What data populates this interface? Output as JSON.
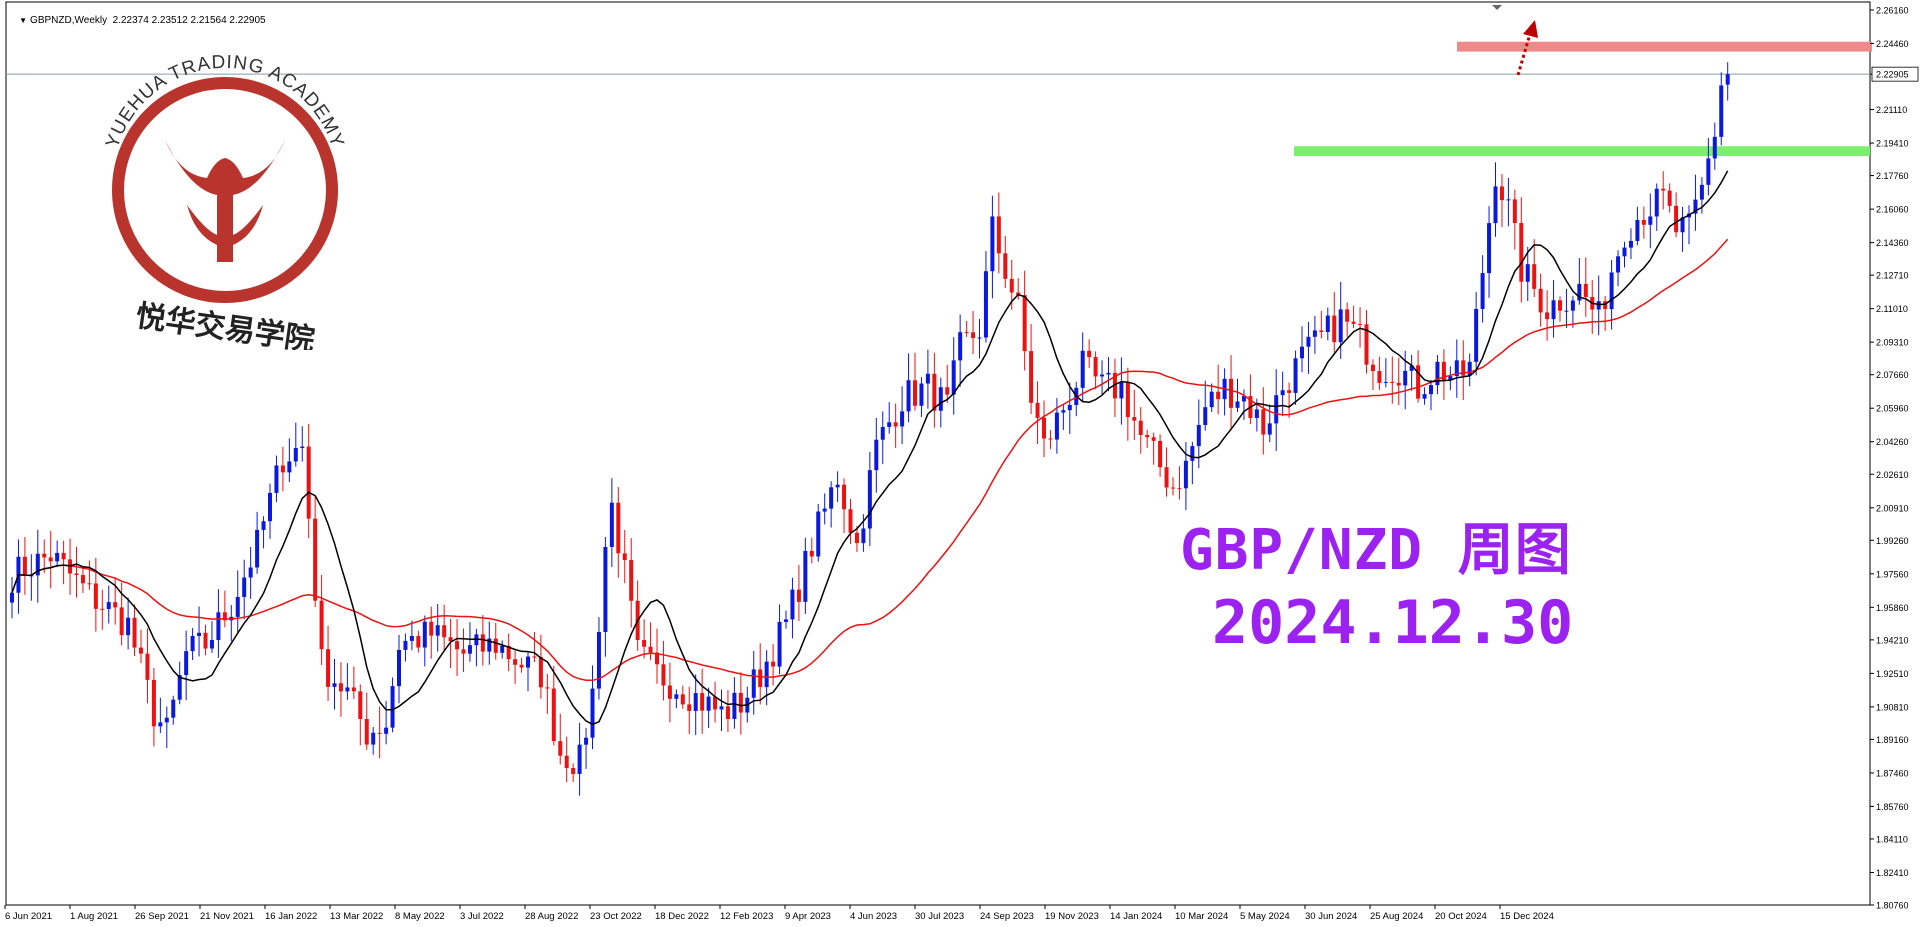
{
  "header": {
    "text": "GBPNZD,Weekly  2.22374 2.23512 2.21564 2.22905"
  },
  "colors": {
    "bull": "#0b18e0",
    "bear": "#ee1111",
    "ma_fast": "#000000",
    "ma_slow": "#ee1111",
    "resistance_zone": "#f08a8a",
    "support_zone": "#7cf06c",
    "overlay_text": "#9b22f0",
    "logo": "#b8342c",
    "arrow": "#c00000"
  },
  "logo": {
    "arc_text": "YUEHUA TRADING ACADEMY",
    "cn_text": "悦华交易学院"
  },
  "overlay": {
    "line1": "GBP/NZD 周图",
    "line2": "2024.12.30"
  },
  "chart_data": {
    "type": "candlestick",
    "symbol": "GBPNZD",
    "timeframe": "Weekly",
    "price_axis_ticks": [
      "2.26160",
      "2.24460",
      "2.22905",
      "2.21110",
      "2.19410",
      "2.17760",
      "2.16060",
      "2.14360",
      "2.12710",
      "2.11010",
      "2.09310",
      "2.07660",
      "2.05960",
      "2.04260",
      "2.02610",
      "2.00910",
      "1.99260",
      "1.97560",
      "1.95860",
      "1.94210",
      "1.92510",
      "1.90810",
      "1.89160",
      "1.87460",
      "1.85760",
      "1.84110",
      "1.82410",
      "1.80760"
    ],
    "ylim": [
      1.8076,
      2.2616
    ],
    "current_price": "2.22905",
    "time_axis_labels": [
      "6 Jun 2021",
      "1 Aug 2021",
      "26 Sep 2021",
      "21 Nov 2021",
      "16 Jan 2022",
      "13 Mar 2022",
      "8 May 2022",
      "3 Jul 2022",
      "28 Aug 2022",
      "23 Oct 2022",
      "18 Dec 2022",
      "12 Feb 2023",
      "9 Apr 2023",
      "4 Jun 2023",
      "30 Jul 2023",
      "24 Sep 2023",
      "19 Nov 2023",
      "14 Jan 2024",
      "10 Mar 2024",
      "5 May 2024",
      "30 Jun 2024",
      "25 Aug 2024",
      "20 Oct 2024",
      "15 Dec 2024"
    ],
    "resistance_zone": [
      2.2405,
      2.2455
    ],
    "support_zone": [
      2.1875,
      2.1925
    ],
    "anchors": [
      [
        0,
        1.975
      ],
      [
        6,
        1.985
      ],
      [
        12,
        1.965
      ],
      [
        18,
        1.95
      ],
      [
        22,
        1.905
      ],
      [
        24,
        1.895
      ],
      [
        27,
        1.935
      ],
      [
        30,
        1.94
      ],
      [
        34,
        1.96
      ],
      [
        38,
        1.99
      ],
      [
        42,
        2.035
      ],
      [
        45,
        2.04
      ],
      [
        46,
        2.005
      ],
      [
        48,
        1.93
      ],
      [
        52,
        1.915
      ],
      [
        55,
        1.895
      ],
      [
        58,
        1.9
      ],
      [
        60,
        1.94
      ],
      [
        65,
        1.945
      ],
      [
        70,
        1.935
      ],
      [
        75,
        1.94
      ],
      [
        79,
        1.93
      ],
      [
        82,
        1.925
      ],
      [
        85,
        1.885
      ],
      [
        88,
        1.88
      ],
      [
        90,
        1.915
      ],
      [
        92,
        1.99
      ],
      [
        93,
        2.01
      ],
      [
        95,
        1.975
      ],
      [
        97,
        1.935
      ],
      [
        100,
        1.925
      ],
      [
        105,
        1.915
      ],
      [
        110,
        1.905
      ],
      [
        113,
        1.91
      ],
      [
        116,
        1.925
      ],
      [
        120,
        1.95
      ],
      [
        124,
        1.99
      ],
      [
        128,
        2.025
      ],
      [
        131,
        1.99
      ],
      [
        134,
        2.04
      ],
      [
        138,
        2.065
      ],
      [
        142,
        2.07
      ],
      [
        145,
        2.06
      ],
      [
        147,
        2.09
      ],
      [
        150,
        2.1
      ],
      [
        152,
        2.15
      ],
      [
        154,
        2.13
      ],
      [
        156,
        2.11
      ],
      [
        158,
        2.065
      ],
      [
        160,
        2.04
      ],
      [
        163,
        2.06
      ],
      [
        166,
        2.08
      ],
      [
        169,
        2.07
      ],
      [
        172,
        2.07
      ],
      [
        175,
        2.045
      ],
      [
        178,
        2.03
      ],
      [
        180,
        2.02
      ],
      [
        182,
        2.03
      ],
      [
        185,
        2.06
      ],
      [
        188,
        2.07
      ],
      [
        191,
        2.065
      ],
      [
        194,
        2.05
      ],
      [
        197,
        2.07
      ],
      [
        200,
        2.085
      ],
      [
        203,
        2.095
      ],
      [
        206,
        2.105
      ],
      [
        209,
        2.095
      ],
      [
        212,
        2.08
      ],
      [
        215,
        2.08
      ],
      [
        218,
        2.07
      ],
      [
        221,
        2.08
      ],
      [
        224,
        2.075
      ],
      [
        226,
        2.08
      ],
      [
        228,
        2.13
      ],
      [
        230,
        2.18
      ],
      [
        232,
        2.16
      ],
      [
        234,
        2.13
      ],
      [
        236,
        2.12
      ],
      [
        238,
        2.11
      ],
      [
        240,
        2.115
      ],
      [
        243,
        2.12
      ],
      [
        246,
        2.105
      ],
      [
        248,
        2.13
      ],
      [
        250,
        2.15
      ],
      [
        253,
        2.16
      ],
      [
        256,
        2.165
      ],
      [
        258,
        2.15
      ],
      [
        260,
        2.15
      ],
      [
        262,
        2.17
      ],
      [
        263,
        2.185
      ],
      [
        264,
        2.2
      ],
      [
        265,
        2.225
      ],
      [
        266,
        2.229
      ]
    ],
    "moving_averages": [
      {
        "period": "fast",
        "color": "#000000"
      },
      {
        "period": "slow",
        "color": "#ee1111"
      }
    ]
  }
}
